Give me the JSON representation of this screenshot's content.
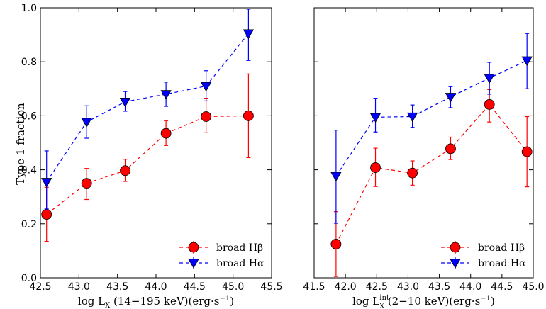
{
  "chart_data": [
    {
      "type": "line",
      "xlabel_parts": {
        "main": "log L",
        "sub": "X",
        "rest": " (14−195 keV)(erg·s",
        "sup": "−1",
        "end": ")"
      },
      "ylabel": "Type 1 fraction",
      "xlim": [
        42.5,
        45.5
      ],
      "ylim": [
        0.0,
        1.0
      ],
      "xticks": [
        "42.5",
        "43.0",
        "43.5",
        "44.0",
        "44.5",
        "45.0",
        "45.5"
      ],
      "yticks": [
        "0.0",
        "0.2",
        "0.4",
        "0.6",
        "0.8",
        "1.0"
      ],
      "legend_location": "lower-right",
      "series": [
        {
          "name": "broad Hβ",
          "color": "#ff0000",
          "marker": "circle",
          "x": [
            42.58,
            43.1,
            43.6,
            44.13,
            44.65,
            45.2
          ],
          "y": [
            0.235,
            0.35,
            0.397,
            0.535,
            0.597,
            0.6
          ],
          "err_low": [
            0.1,
            0.06,
            0.04,
            0.045,
            0.06,
            0.155
          ],
          "err_high": [
            0.1,
            0.055,
            0.042,
            0.047,
            0.068,
            0.155
          ]
        },
        {
          "name": "broad Hα",
          "color": "#0000ff",
          "marker": "triangle-down",
          "x": [
            42.58,
            43.1,
            43.6,
            44.13,
            44.65,
            45.2
          ],
          "y": [
            0.355,
            0.577,
            0.652,
            0.68,
            0.71,
            0.905
          ],
          "err_low": [
            0.1,
            0.06,
            0.035,
            0.045,
            0.055,
            0.1
          ],
          "err_high": [
            0.115,
            0.06,
            0.038,
            0.045,
            0.057,
            0.09
          ]
        }
      ]
    },
    {
      "type": "line",
      "xlabel_parts": {
        "main": "log L",
        "sub": "X",
        "supint": "int",
        "rest": " (2−10 keV)(erg·s",
        "sup": "−1",
        "end": ")"
      },
      "ylabel": "",
      "xlim": [
        41.5,
        45.0
      ],
      "ylim": [
        0.0,
        1.0
      ],
      "xticks": [
        "41.5",
        "42.0",
        "42.5",
        "43.0",
        "43.5",
        "44.0",
        "44.5",
        "45.0"
      ],
      "yticks": [],
      "legend_location": "lower-right",
      "series": [
        {
          "name": "broad Hβ",
          "color": "#ff0000",
          "marker": "circle",
          "x": [
            41.85,
            42.48,
            43.07,
            43.68,
            44.3,
            44.9
          ],
          "y": [
            0.125,
            0.408,
            0.388,
            0.478,
            0.642,
            0.467
          ],
          "err_low": [
            0.12,
            0.07,
            0.045,
            0.04,
            0.065,
            0.13
          ],
          "err_high": [
            0.12,
            0.072,
            0.045,
            0.043,
            0.055,
            0.13
          ]
        },
        {
          "name": "broad Hα",
          "color": "#0000ff",
          "marker": "triangle-down",
          "x": [
            41.85,
            42.48,
            43.07,
            43.68,
            44.3,
            44.9
          ],
          "y": [
            0.377,
            0.595,
            0.597,
            0.67,
            0.74,
            0.805
          ],
          "err_low": [
            0.175,
            0.055,
            0.04,
            0.04,
            0.06,
            0.105
          ],
          "err_high": [
            0.17,
            0.07,
            0.043,
            0.038,
            0.058,
            0.1
          ]
        }
      ]
    }
  ]
}
